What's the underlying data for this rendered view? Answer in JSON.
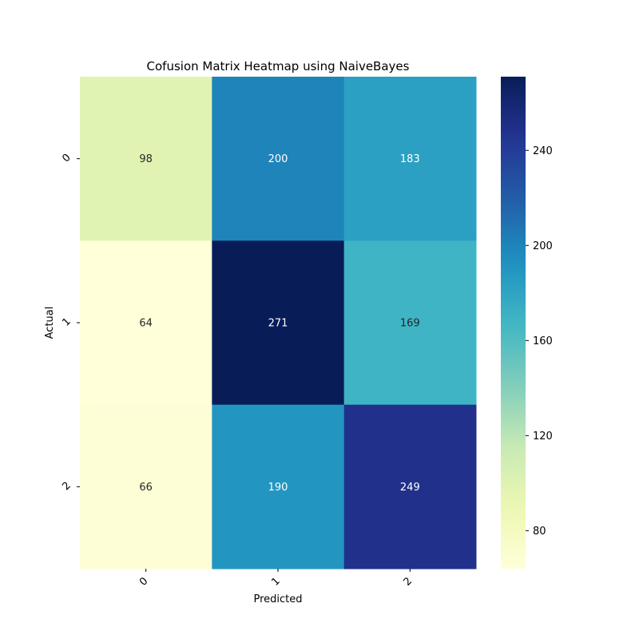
{
  "chart_data": {
    "type": "heatmap",
    "title": "Cofusion Matrix Heatmap using NaiveBayes",
    "xlabel": "Predicted",
    "ylabel": "Actual",
    "x_categories": [
      "0",
      "1",
      "2"
    ],
    "y_categories": [
      "0",
      "1",
      "2"
    ],
    "values": [
      [
        98,
        200,
        183
      ],
      [
        64,
        271,
        169
      ],
      [
        66,
        190,
        249
      ]
    ],
    "colormap": "YlGnBu",
    "color_range": [
      64,
      271
    ],
    "colorbar_ticks": [
      80,
      120,
      160,
      200,
      240
    ],
    "colorbar_tick_labels": [
      "80",
      "120",
      "160",
      "200",
      "240"
    ]
  }
}
